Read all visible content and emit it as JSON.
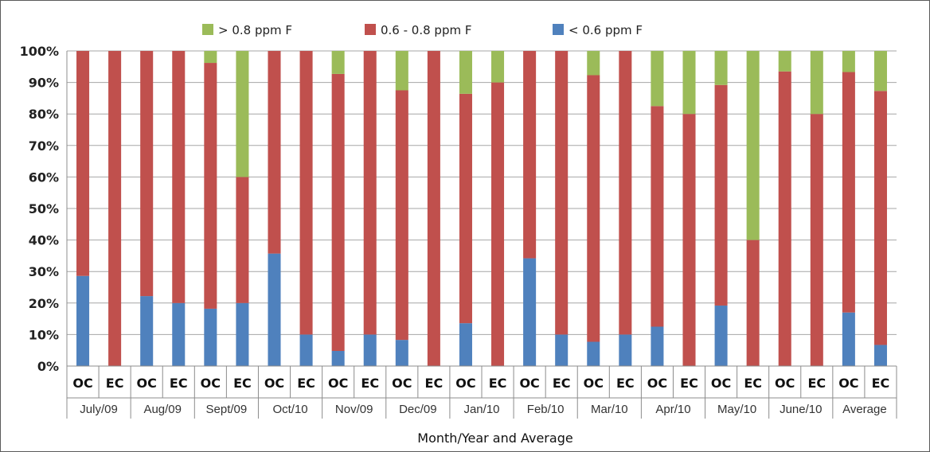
{
  "chart_data": {
    "type": "bar",
    "stacked": true,
    "percent_stacked": true,
    "xlabel": "Month/Year and Average",
    "ylabel": "",
    "ylim": [
      0,
      100
    ],
    "y_ticks": [
      "0%",
      "10%",
      "20%",
      "30%",
      "40%",
      "50%",
      "60%",
      "70%",
      "80%",
      "90%",
      "100%"
    ],
    "grid": true,
    "legend_position": "top",
    "groups": [
      "July/09",
      "Aug/09",
      "Sept/09",
      "Oct/10",
      "Nov/09",
      "Dec/09",
      "Jan/10",
      "Feb/10",
      "Mar/10",
      "Apr/10",
      "May/10",
      "June/10",
      "Average"
    ],
    "subcategories": [
      "OC",
      "EC"
    ],
    "categories": [
      "July/09 OC",
      "July/09 EC",
      "Aug/09 OC",
      "Aug/09 EC",
      "Sept/09 OC",
      "Sept/09 EC",
      "Oct/10 OC",
      "Oct/10 EC",
      "Nov/09 OC",
      "Nov/09 EC",
      "Dec/09 OC",
      "Dec/09 EC",
      "Jan/10 OC",
      "Jan/10 EC",
      "Feb/10 OC",
      "Feb/10 EC",
      "Mar/10 OC",
      "Mar/10 EC",
      "Apr/10 OC",
      "Apr/10 EC",
      "May/10 OC",
      "May/10 EC",
      "June/10 OC",
      "June/10 EC",
      "Average OC",
      "Average EC"
    ],
    "series": [
      {
        "name": "< 0.6 ppm F",
        "color": "#4f81bd",
        "values": [
          28.6,
          0,
          22.2,
          20,
          18.2,
          20,
          35.7,
          10,
          4.8,
          10,
          8.3,
          0,
          13.6,
          0,
          34.2,
          10,
          7.7,
          10,
          12.5,
          0,
          19.2,
          0,
          0,
          0,
          17,
          6.7
        ]
      },
      {
        "name": "0.6 - 0.8 ppm F",
        "color": "#c0504d",
        "values": [
          71.4,
          100,
          77.8,
          80,
          78,
          40,
          64.3,
          90,
          87.9,
          90,
          79.2,
          100,
          72.8,
          90,
          65.8,
          90,
          84.6,
          90,
          70,
          80,
          70,
          40,
          93.5,
          80,
          76.3,
          80.6
        ]
      },
      {
        "name": "> 0.8 ppm F",
        "color": "#9bbb59",
        "values": [
          0,
          0,
          0,
          0,
          3.8,
          40,
          0,
          0,
          7.3,
          0,
          12.5,
          0,
          13.6,
          10,
          0,
          0,
          7.7,
          0,
          17.5,
          20,
          10.8,
          60,
          6.5,
          20,
          6.7,
          12.7
        ]
      }
    ],
    "legend_order": [
      "> 0.8 ppm F",
      "0.6 - 0.8 ppm F",
      "< 0.6 ppm F"
    ]
  }
}
